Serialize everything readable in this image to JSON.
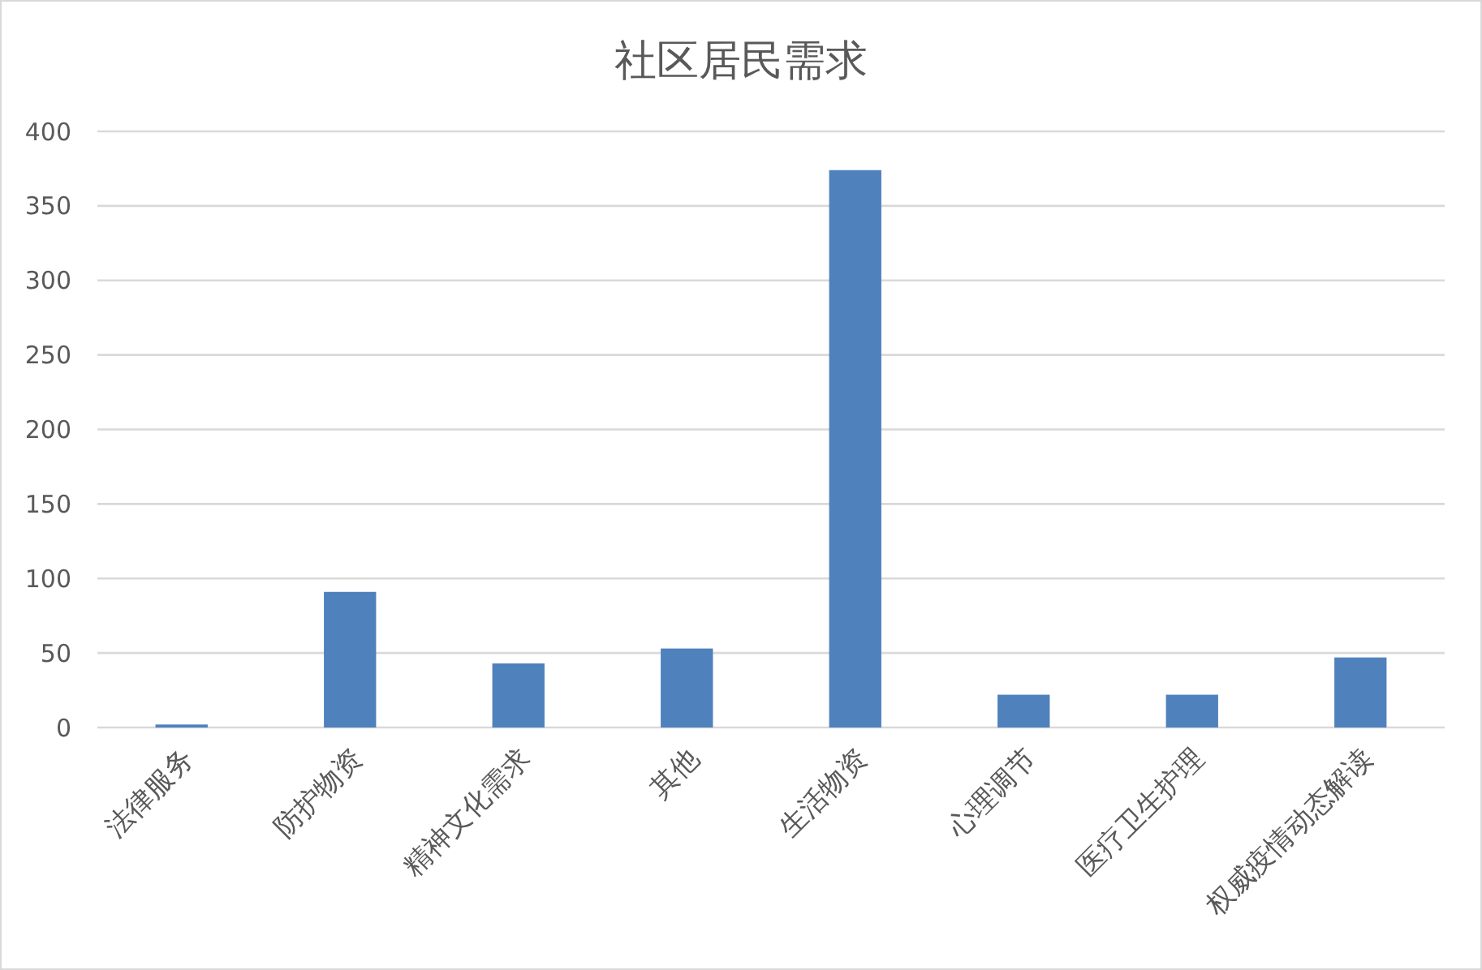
{
  "chart_data": {
    "type": "bar",
    "title": "社区居民需求",
    "categories": [
      "法律服务",
      "防护物资",
      "精神文化需求",
      "其他",
      "生活物资",
      "心理调节",
      "医疗卫生护理",
      "权威疫情动态解读"
    ],
    "values": [
      2,
      91,
      43,
      53,
      374,
      22,
      22,
      47
    ],
    "color": "#4f81bd",
    "ylim": [
      0,
      400
    ],
    "yticks": [
      0,
      50,
      100,
      150,
      200,
      250,
      300,
      350,
      400
    ],
    "grid": "y"
  }
}
